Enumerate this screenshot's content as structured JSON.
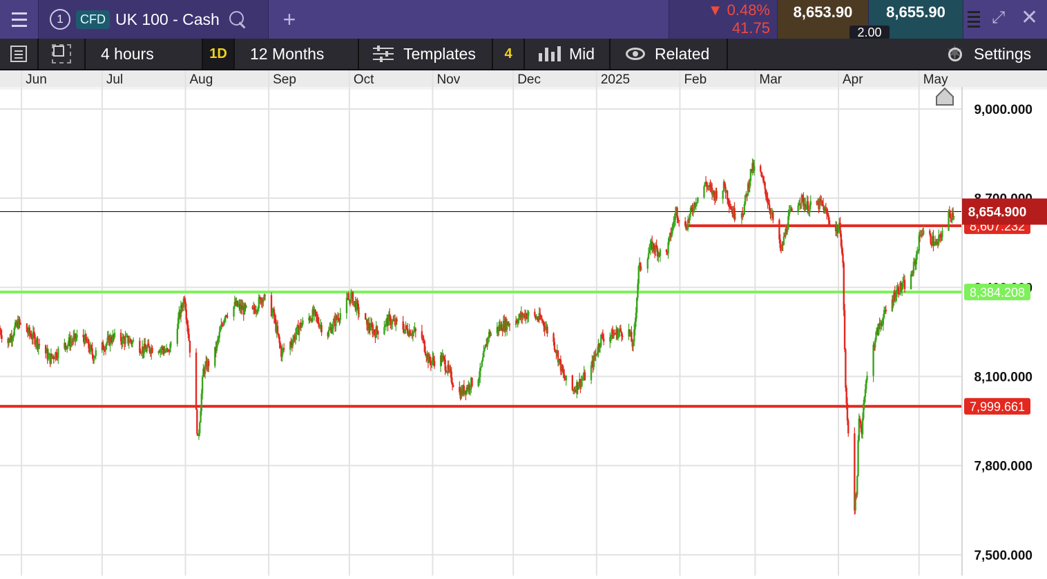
{
  "header": {
    "menu_icon": "hamburger-icon",
    "tab_number": "1",
    "badge": "CFD",
    "instrument": "UK 100 - Cash",
    "search_icon": "search-icon",
    "add_tab_icon": "plus-icon",
    "change_percent": "0.48%",
    "change_points": "41.75",
    "change_direction": "down",
    "sell_price": "8,653.90",
    "buy_price": "8,655.90",
    "spread": "2.00",
    "expand_icon": "expand-icon",
    "close_icon": "close-icon"
  },
  "toolbar": {
    "interval": "4 hours",
    "quick_period": "1D",
    "period": "12 Months",
    "templates": "Templates",
    "count": "4",
    "price_mode": "Mid",
    "related": "Related",
    "settings": "Settings"
  },
  "chart_data": {
    "type": "candlestick",
    "instrument": "UK 100 - Cash",
    "interval": "4 hours",
    "x_axis": {
      "type": "date",
      "range": [
        "2024-05-24",
        "2025-05-17"
      ],
      "tick_labels": [
        "Jun",
        "Jul",
        "Aug",
        "Sep",
        "Oct",
        "Nov",
        "Dec",
        "2025",
        "Feb",
        "Mar",
        "Apr",
        "May"
      ]
    },
    "y_axis": {
      "range": [
        7430,
        9065
      ],
      "tick_labels": [
        "9,000.000",
        "8,700.000",
        "8,400.000",
        "8,100.000",
        "7,800.000",
        "7,500.000"
      ],
      "tick_values": [
        9000,
        8700,
        8400,
        8100,
        7800,
        7500
      ]
    },
    "grid": true,
    "colors": {
      "up": "#3aa51c",
      "down": "#e3281f",
      "current_price_label": "#b51c1c",
      "support_line": "#7ef05a"
    },
    "current_price": {
      "value": 8654.9,
      "label": "8,654.900"
    },
    "horizontal_lines": [
      {
        "value": 8607.232,
        "label": "8,607.232",
        "color": "#e3281f",
        "start": "2025-02-03"
      },
      {
        "value": 8384.208,
        "label": "8,384.208",
        "color": "#7ef05a"
      },
      {
        "value": 7999.661,
        "label": "7,999.661",
        "color": "#e3281f"
      }
    ],
    "price_path": [
      [
        "2024-05-24",
        8260
      ],
      [
        "2024-05-27",
        8210
      ],
      [
        "2024-05-31",
        8280
      ],
      [
        "2024-06-06",
        8230
      ],
      [
        "2024-06-12",
        8160
      ],
      [
        "2024-06-18",
        8210
      ],
      [
        "2024-06-24",
        8240
      ],
      [
        "2024-06-28",
        8170
      ],
      [
        "2024-07-05",
        8230
      ],
      [
        "2024-07-12",
        8220
      ],
      [
        "2024-07-17",
        8190
      ],
      [
        "2024-07-22",
        8200
      ],
      [
        "2024-07-26",
        8180
      ],
      [
        "2024-07-30",
        8300
      ],
      [
        "2024-08-01",
        8370
      ],
      [
        "2024-08-05",
        8020
      ],
      [
        "2024-08-06",
        7880
      ],
      [
        "2024-08-08",
        8120
      ],
      [
        "2024-08-12",
        8170
      ],
      [
        "2024-08-16",
        8310
      ],
      [
        "2024-08-20",
        8340
      ],
      [
        "2024-08-26",
        8310
      ],
      [
        "2024-08-30",
        8370
      ],
      [
        "2024-09-03",
        8310
      ],
      [
        "2024-09-06",
        8180
      ],
      [
        "2024-09-10",
        8220
      ],
      [
        "2024-09-13",
        8270
      ],
      [
        "2024-09-18",
        8310
      ],
      [
        "2024-09-23",
        8240
      ],
      [
        "2024-09-27",
        8300
      ],
      [
        "2024-10-02",
        8370
      ],
      [
        "2024-10-07",
        8280
      ],
      [
        "2024-10-11",
        8250
      ],
      [
        "2024-10-16",
        8290
      ],
      [
        "2024-10-22",
        8260
      ],
      [
        "2024-10-28",
        8240
      ],
      [
        "2024-10-31",
        8150
      ],
      [
        "2024-11-05",
        8160
      ],
      [
        "2024-11-11",
        8040
      ],
      [
        "2024-11-15",
        8070
      ],
      [
        "2024-11-19",
        8110
      ],
      [
        "2024-11-22",
        8240
      ],
      [
        "2024-11-27",
        8270
      ],
      [
        "2024-12-02",
        8290
      ],
      [
        "2024-12-06",
        8310
      ],
      [
        "2024-12-12",
        8290
      ],
      [
        "2024-12-17",
        8200
      ],
      [
        "2024-12-20",
        8100
      ],
      [
        "2024-12-23",
        8050
      ],
      [
        "2024-12-30",
        8120
      ],
      [
        "2025-01-03",
        8230
      ],
      [
        "2025-01-07",
        8240
      ],
      [
        "2025-01-13",
        8260
      ],
      [
        "2025-01-15",
        8200
      ],
      [
        "2025-01-17",
        8460
      ],
      [
        "2025-01-22",
        8540
      ],
      [
        "2025-01-27",
        8500
      ],
      [
        "2025-01-31",
        8660
      ],
      [
        "2025-02-03",
        8590
      ],
      [
        "2025-02-05",
        8640
      ],
      [
        "2025-02-07",
        8690
      ],
      [
        "2025-02-11",
        8750
      ],
      [
        "2025-02-14",
        8710
      ],
      [
        "2025-02-18",
        8740
      ],
      [
        "2025-02-21",
        8650
      ],
      [
        "2025-02-25",
        8660
      ],
      [
        "2025-02-28",
        8800
      ],
      [
        "2025-03-03",
        8790
      ],
      [
        "2025-03-05",
        8730
      ],
      [
        "2025-03-07",
        8660
      ],
      [
        "2025-03-11",
        8520
      ],
      [
        "2025-03-14",
        8640
      ],
      [
        "2025-03-18",
        8700
      ],
      [
        "2025-03-21",
        8670
      ],
      [
        "2025-03-26",
        8680
      ],
      [
        "2025-03-31",
        8590
      ],
      [
        "2025-04-02",
        8600
      ],
      [
        "2025-04-03",
        8470
      ],
      [
        "2025-04-04",
        8050
      ],
      [
        "2025-04-07",
        7650
      ],
      [
        "2025-04-08",
        7700
      ],
      [
        "2025-04-09",
        7950
      ],
      [
        "2025-04-10",
        7920
      ],
      [
        "2025-04-11",
        8050
      ],
      [
        "2025-04-15",
        8230
      ],
      [
        "2025-04-17",
        8280
      ],
      [
        "2025-04-23",
        8390
      ],
      [
        "2025-04-28",
        8420
      ],
      [
        "2025-04-30",
        8490
      ],
      [
        "2025-05-02",
        8590
      ],
      [
        "2025-05-06",
        8560
      ],
      [
        "2025-05-08",
        8540
      ],
      [
        "2025-05-12",
        8640
      ],
      [
        "2025-05-14",
        8650
      ]
    ]
  }
}
